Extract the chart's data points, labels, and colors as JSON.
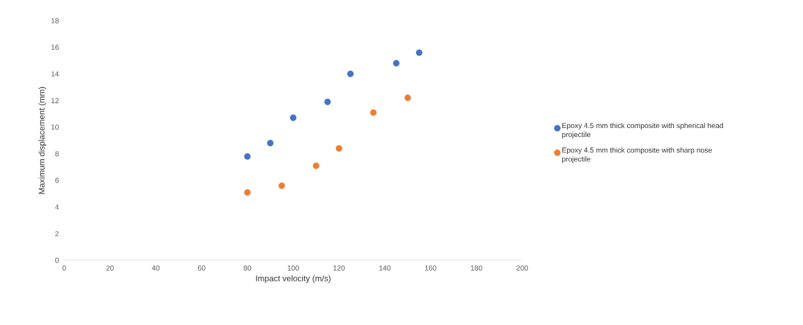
{
  "chart_data": {
    "type": "scatter",
    "xlabel": "Impact velocity (m/s)",
    "ylabel": "Maximum displacement (mm)",
    "xlim": [
      0,
      200
    ],
    "xticks": [
      0,
      20,
      40,
      60,
      80,
      100,
      120,
      140,
      160,
      180,
      200
    ],
    "ylim": [
      0,
      18
    ],
    "yticks": [
      0,
      2,
      4,
      6,
      8,
      10,
      12,
      14,
      16,
      18
    ],
    "grid": false,
    "legend": "right",
    "marker": "circle",
    "series": [
      {
        "name": "Epoxy 4.5 mm thick composite with spherical head projectile",
        "color": "#4472c4",
        "x": [
          80,
          90,
          100,
          115,
          125,
          145,
          155
        ],
        "values": [
          7.8,
          8.8,
          10.7,
          11.9,
          14.0,
          14.8,
          15.6
        ]
      },
      {
        "name": "Epoxy 4.5 mm thick composite with sharp nose projectile",
        "color": "#ed7d31",
        "x": [
          80,
          95,
          110,
          120,
          135,
          150
        ],
        "values": [
          5.1,
          5.6,
          7.1,
          8.4,
          11.1,
          12.2
        ]
      }
    ]
  }
}
